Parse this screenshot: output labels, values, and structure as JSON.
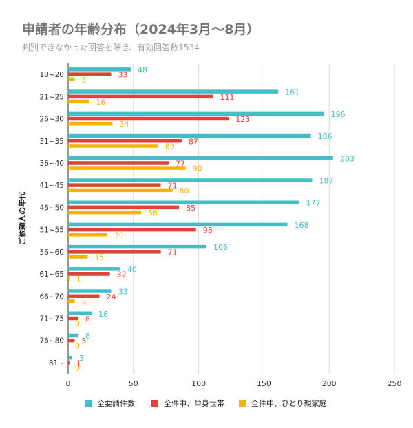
{
  "chart_data": {
    "type": "bar",
    "orientation": "horizontal",
    "title": "申請者の年齢分布（2024年3月〜8月）",
    "subtitle": "判別できなかった回答を除き、有効回答数1534",
    "xlabel": "",
    "ylabel": "ご依頼人の年代",
    "xlim": [
      0,
      250
    ],
    "xticks": [
      "0",
      "50",
      "100",
      "150",
      "200",
      "250"
    ],
    "xtick_values": [
      0,
      50,
      100,
      150,
      200,
      250
    ],
    "grid": true,
    "legend_position": "bottom",
    "categories": [
      "18~20",
      "21~25",
      "26~30",
      "31~35",
      "36~40",
      "41~45",
      "46~50",
      "51~55",
      "56~60",
      "61~65",
      "66~70",
      "71~75",
      "76~80",
      "81~"
    ],
    "series": [
      {
        "name": "全要請件数",
        "color": "#46bdc6",
        "values": [
          48,
          161,
          196,
          186,
          203,
          187,
          177,
          168,
          106,
          40,
          33,
          18,
          8,
          3
        ]
      },
      {
        "name": "全件中、単身世帯",
        "color": "#db4437",
        "values": [
          33,
          111,
          123,
          87,
          77,
          71,
          85,
          98,
          71,
          32,
          24,
          8,
          5,
          1
        ]
      },
      {
        "name": "全件中、ひとり親家庭",
        "color": "#f4b400",
        "values": [
          5,
          16,
          34,
          69,
          90,
          80,
          56,
          30,
          15,
          1,
          5,
          0,
          0,
          0
        ]
      }
    ]
  }
}
